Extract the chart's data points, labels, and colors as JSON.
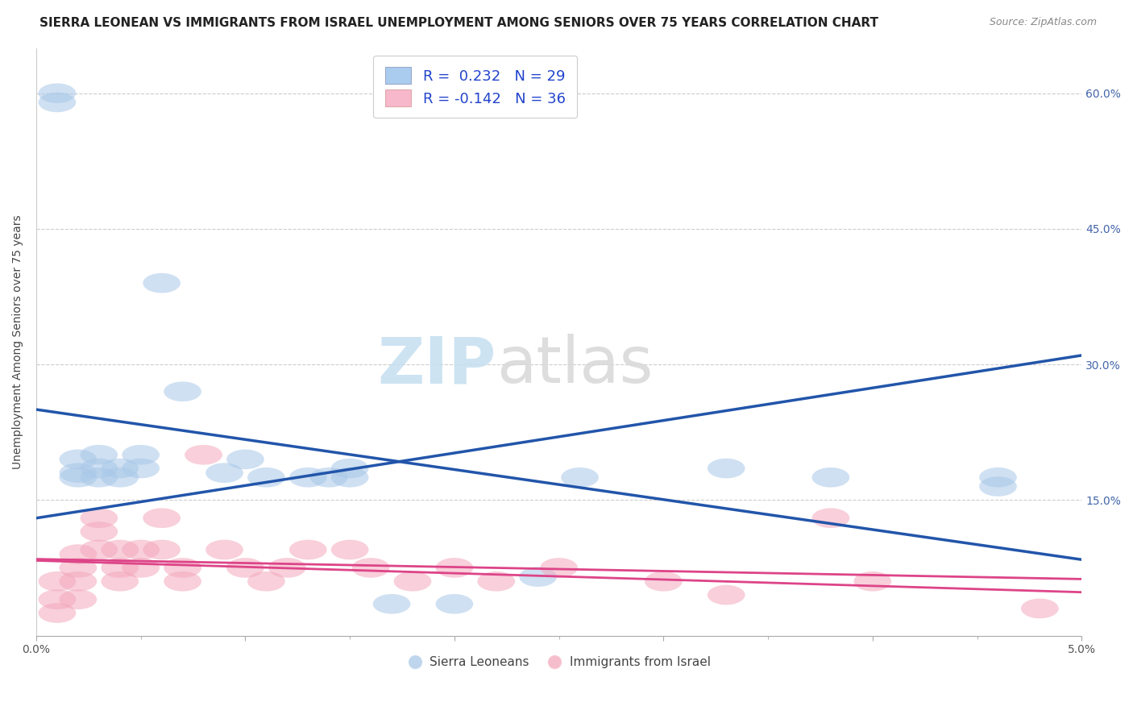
{
  "title": "SIERRA LEONEAN VS IMMIGRANTS FROM ISRAEL UNEMPLOYMENT AMONG SENIORS OVER 75 YEARS CORRELATION CHART",
  "source": "Source: ZipAtlas.com",
  "ylabel": "Unemployment Among Seniors over 75 years",
  "xlim": [
    0.0,
    0.05
  ],
  "ylim": [
    0.0,
    0.65
  ],
  "yticks": [
    0.0,
    0.15,
    0.3,
    0.45,
    0.6
  ],
  "ytick_labels": [
    "",
    "15.0%",
    "30.0%",
    "45.0%",
    "60.0%"
  ],
  "xticks": [
    0.0,
    0.01,
    0.02,
    0.03,
    0.04,
    0.05
  ],
  "xtick_labels": [
    "0.0%",
    "",
    "",
    "",
    "",
    "5.0%"
  ],
  "blue_color": "#a8c8e8",
  "pink_color": "#f4a8bc",
  "blue_line_color": "#2255aa",
  "pink_line_color": "#dd4488",
  "legend_label1": "Sierra Leoneans",
  "legend_label2": "Immigrants from Israel",
  "sl_x": [
    0.001,
    0.001,
    0.002,
    0.002,
    0.002,
    0.003,
    0.003,
    0.003,
    0.004,
    0.004,
    0.005,
    0.005,
    0.006,
    0.007,
    0.009,
    0.01,
    0.011,
    0.013,
    0.014,
    0.015,
    0.015,
    0.017,
    0.02,
    0.024,
    0.026,
    0.033,
    0.038,
    0.046,
    0.046
  ],
  "sl_y": [
    0.6,
    0.59,
    0.195,
    0.18,
    0.175,
    0.2,
    0.185,
    0.175,
    0.185,
    0.175,
    0.2,
    0.185,
    0.39,
    0.27,
    0.18,
    0.195,
    0.175,
    0.175,
    0.175,
    0.185,
    0.175,
    0.035,
    0.035,
    0.065,
    0.175,
    0.185,
    0.175,
    0.175,
    0.165
  ],
  "israel_x": [
    0.001,
    0.001,
    0.001,
    0.002,
    0.002,
    0.002,
    0.002,
    0.003,
    0.003,
    0.003,
    0.004,
    0.004,
    0.004,
    0.005,
    0.005,
    0.006,
    0.006,
    0.007,
    0.007,
    0.008,
    0.009,
    0.01,
    0.011,
    0.012,
    0.013,
    0.015,
    0.016,
    0.018,
    0.02,
    0.022,
    0.025,
    0.03,
    0.033,
    0.038,
    0.04,
    0.048
  ],
  "israel_y": [
    0.06,
    0.04,
    0.025,
    0.09,
    0.075,
    0.06,
    0.04,
    0.13,
    0.115,
    0.095,
    0.095,
    0.075,
    0.06,
    0.095,
    0.075,
    0.13,
    0.095,
    0.075,
    0.06,
    0.2,
    0.095,
    0.075,
    0.06,
    0.075,
    0.095,
    0.095,
    0.075,
    0.06,
    0.075,
    0.06,
    0.075,
    0.06,
    0.045,
    0.13,
    0.06,
    0.03
  ],
  "title_fontsize": 11,
  "axis_fontsize": 10,
  "tick_fontsize": 10,
  "r1_text": "R =  0.232   N = 29",
  "r2_text": "R = -0.142   N = 36"
}
